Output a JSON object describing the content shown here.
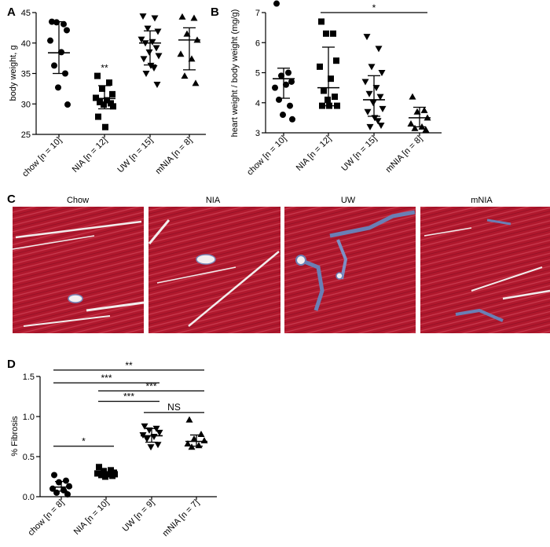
{
  "panels": {
    "A": "A",
    "B": "B",
    "C": "C",
    "D": "D"
  },
  "panel_c": {
    "labels": [
      "Chow",
      "NIA",
      "UW",
      "mNIA"
    ],
    "colors": {
      "muscle": "#b0182d",
      "collagen": "#6a7fb5",
      "space": "#f2ecec"
    }
  },
  "chart_data": [
    {
      "panel": "A",
      "type": "scatter",
      "ylabel": "body weight, g",
      "ylim": [
        25,
        45
      ],
      "yticks": [
        "25",
        "30",
        "35",
        "40",
        "45"
      ],
      "categories": [
        "chow [n = 10]",
        "NIA [n = 12]",
        "UW [n = 15]",
        "mNIA [n = 8]"
      ],
      "markers": [
        "circle",
        "square",
        "triangle-down",
        "triangle-up"
      ],
      "points": [
        [
          43.5,
          43.1,
          43.4,
          42.1,
          40.4,
          38.5,
          36.3,
          35.0,
          32.7,
          29.9
        ],
        [
          34.6,
          33.5,
          32.5,
          31.6,
          31.0,
          30.6,
          30.3,
          30.1,
          29.9,
          29.6,
          27.9,
          26.2
        ],
        [
          44.4,
          44.1,
          42.4,
          41.9,
          40.6,
          40.2,
          40.0,
          39.2,
          38.5,
          37.9,
          37.4,
          36.3,
          35.9,
          35.0,
          33.2
        ],
        [
          44.3,
          44.1,
          41.5,
          40.5,
          38.2,
          37.4,
          34.6,
          33.4
        ]
      ],
      "mean": [
        38.4,
        30.9,
        40.0,
        40.5
      ],
      "err": [
        [
          35.0,
          43.5
        ],
        [
          29.2,
          33.0
        ],
        [
          36.4,
          42.0
        ],
        [
          35.6,
          42.5
        ]
      ],
      "annotations": [
        {
          "category": 1,
          "text": "**"
        }
      ]
    },
    {
      "panel": "B",
      "type": "scatter",
      "ylabel": "heart weight / body weight (mg/g)",
      "ylim": [
        3,
        7
      ],
      "yticks": [
        "3",
        "4",
        "5",
        "6",
        "7"
      ],
      "categories": [
        "chow [n = 10]",
        "NIA [n = 12]",
        "UW [n = 15]",
        "mNIA [n = 8]"
      ],
      "markers": [
        "circle",
        "square",
        "triangle-down",
        "triangle-up"
      ],
      "points": [
        [
          7.3,
          5.0,
          4.9,
          4.7,
          4.5,
          4.6,
          4.1,
          3.9,
          3.6,
          3.45
        ],
        [
          6.7,
          6.3,
          6.3,
          5.4,
          5.2,
          4.8,
          4.4,
          4.2,
          4.1,
          3.9,
          3.9,
          3.9
        ],
        [
          6.2,
          5.8,
          5.2,
          5.0,
          4.7,
          4.5,
          4.3,
          4.2,
          4.0,
          3.8,
          3.7,
          3.5,
          3.4,
          3.2,
          3.25
        ],
        [
          4.2,
          3.75,
          3.7,
          3.5,
          3.3,
          3.2,
          3.15,
          3.1
        ]
      ],
      "mean": [
        4.8,
        4.5,
        4.1,
        3.5
      ],
      "err": [
        [
          4.15,
          5.15
        ],
        [
          3.9,
          5.85
        ],
        [
          3.55,
          4.9
        ],
        [
          3.2,
          3.85
        ]
      ],
      "brackets": [
        {
          "from": 0,
          "to": 3,
          "y": 7.85,
          "text": "*"
        },
        {
          "from": 1,
          "to": 3,
          "y": 7.0,
          "text": "*"
        }
      ]
    },
    {
      "panel": "D",
      "type": "scatter",
      "ylabel": "% Fibrosis",
      "ylim": [
        0,
        1.5
      ],
      "yticks": [
        "0.0",
        "0.5",
        "1.0",
        "1.5"
      ],
      "categories": [
        "chow [n = 8]",
        "NIA [n = 10]",
        "UW [n = 9]",
        "mNIA [n = 7]"
      ],
      "markers": [
        "circle",
        "square",
        "triangle-down",
        "triangle-up"
      ],
      "points": [
        [
          0.27,
          0.2,
          0.18,
          0.13,
          0.1,
          0.08,
          0.05,
          0.03
        ],
        [
          0.37,
          0.33,
          0.32,
          0.3,
          0.29,
          0.28,
          0.27,
          0.26,
          0.25,
          0.28
        ],
        [
          0.88,
          0.85,
          0.83,
          0.8,
          0.77,
          0.75,
          0.72,
          0.65,
          0.62
        ],
        [
          0.96,
          0.78,
          0.72,
          0.7,
          0.66,
          0.64,
          0.62
        ]
      ],
      "mean": [
        0.12,
        0.29,
        0.76,
        0.69
      ],
      "err": [
        [
          0.07,
          0.19
        ],
        [
          0.26,
          0.31
        ],
        [
          0.68,
          0.85
        ],
        [
          0.63,
          0.77
        ]
      ],
      "brackets": [
        {
          "from": 0,
          "to": 1,
          "y": 0.63,
          "text": "*"
        },
        {
          "from": 0,
          "to": 3,
          "y": 1.58,
          "text": "**"
        },
        {
          "from": 0,
          "to": 2,
          "y": 1.42,
          "text": "***"
        },
        {
          "from": 1,
          "to": 3,
          "y": 1.32,
          "text": "***"
        },
        {
          "from": 1,
          "to": 2,
          "y": 1.19,
          "text": "***"
        },
        {
          "from": 2,
          "to": 3,
          "y": 1.05,
          "text": "NS"
        }
      ]
    }
  ]
}
